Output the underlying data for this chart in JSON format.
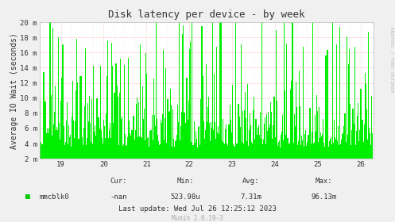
{
  "title": "Disk latency per device - by week",
  "ylabel": "Average IO Wait (seconds)",
  "right_label": "RRDTOOL / TOBI OETIKER",
  "legend_label": "mmcblk0",
  "legend_color": "#00cc00",
  "x_min": 18.5,
  "x_max": 26.3,
  "y_min": 2,
  "y_max": 20,
  "y_ticks": [
    2,
    4,
    6,
    8,
    10,
    12,
    14,
    16,
    18,
    20
  ],
  "y_tick_labels": [
    "2 m",
    "4 m",
    "6 m",
    "8 m",
    "10 m",
    "12 m",
    "14 m",
    "16 m",
    "18 m",
    "20 m"
  ],
  "x_ticks": [
    19,
    20,
    21,
    22,
    23,
    24,
    25,
    26
  ],
  "x_tick_labels": [
    "19",
    "20",
    "21",
    "22",
    "23",
    "24",
    "25",
    "26"
  ],
  "bg_color": "#f0f0f0",
  "plot_bg_color": "#ffffff",
  "bar_color": "#00ee00",
  "cur_label": "Cur:",
  "cur_value": "-nan",
  "min_label": "Min:",
  "min_value": "523.98u",
  "avg_label": "Avg:",
  "avg_value": "7.31m",
  "max_label": "Max:",
  "max_value": "96.13m",
  "last_update": "Last update: Wed Jul 26 12:25:12 2023",
  "munin_version": "Munin 2.0.19-3",
  "font_color": "#333333",
  "seed": 12345,
  "num_bars": 400,
  "title_fontsize": 9,
  "axis_fontsize": 7,
  "tick_fontsize": 6.5,
  "bottom_fontsize": 6.5,
  "right_text_color": "#bbbbbb"
}
